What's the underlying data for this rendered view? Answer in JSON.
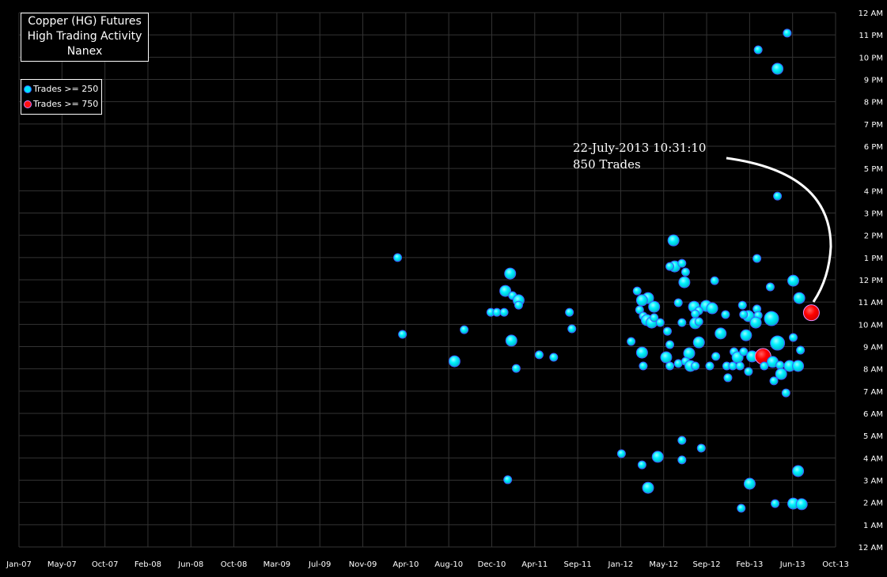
{
  "chart_data": {
    "type": "scatter",
    "title": [
      "Copper (HG) Futures",
      "High Trading Activity",
      "Nanex"
    ],
    "xlim": [
      2007.0,
      2013.75
    ],
    "ylim": [
      0,
      24
    ],
    "grid": true,
    "legend_placement": "top-left",
    "x_tick_labels": [
      "Jan-07",
      "May-07",
      "Oct-07",
      "Feb-08",
      "Jun-08",
      "Oct-08",
      "Mar-09",
      "Jul-09",
      "Nov-09",
      "Apr-10",
      "Aug-10",
      "Dec-10",
      "Apr-11",
      "Sep-11",
      "Jan-12",
      "May-12",
      "Sep-12",
      "Feb-13",
      "Jun-13",
      "Oct-13"
    ],
    "y_tick_labels": [
      "12 AM",
      "1 AM",
      "2 AM",
      "3 AM",
      "4 AM",
      "5 AM",
      "6 AM",
      "7 AM",
      "8 AM",
      "9 AM",
      "10 AM",
      "11 AM",
      "12 PM",
      "1 PM",
      "2 PM",
      "3 PM",
      "4 PM",
      "5 PM",
      "6 PM",
      "7 PM",
      "8 PM",
      "9 PM",
      "10 PM",
      "11 PM",
      "12 AM"
    ],
    "legend": [
      {
        "label": "Trades >= 250",
        "color": "#00e5ff"
      },
      {
        "label": "Trades >= 750",
        "color": "#ff1010"
      }
    ],
    "annotation": {
      "line1": "22-July-2013 10:31:10",
      "line2": "850 Trades"
    },
    "colors": {
      "low": "#00f0ff",
      "high": "#ff0000",
      "grid": "#333333",
      "background": "#000000"
    },
    "x_units": "year (decimal)",
    "y_units": "hour of day",
    "points": [
      [
        2010.13,
        13.0,
        300
      ],
      [
        2010.17,
        9.55,
        300
      ],
      [
        2010.6,
        8.34,
        450
      ],
      [
        2010.68,
        9.76,
        300
      ],
      [
        2010.9,
        10.54,
        300
      ],
      [
        2010.95,
        10.54,
        300
      ],
      [
        2011.01,
        10.54,
        300
      ],
      [
        2011.06,
        12.28,
        450
      ],
      [
        2011.02,
        11.5,
        450
      ],
      [
        2011.08,
        11.29,
        300
      ],
      [
        2011.13,
        11.08,
        450
      ],
      [
        2011.13,
        10.86,
        300
      ],
      [
        2011.07,
        9.27,
        450
      ],
      [
        2011.11,
        8.02,
        300
      ],
      [
        2011.04,
        3.02,
        300
      ],
      [
        2011.3,
        8.63,
        300
      ],
      [
        2011.42,
        8.52,
        300
      ],
      [
        2011.55,
        10.54,
        300
      ],
      [
        2011.57,
        9.8,
        300
      ],
      [
        2012.41,
        13.77,
        450
      ],
      [
        2013.1,
        12.96,
        300
      ],
      [
        2012.42,
        12.6,
        450
      ],
      [
        2012.38,
        12.6,
        300
      ],
      [
        2012.48,
        12.74,
        300
      ],
      [
        2012.51,
        12.35,
        300
      ],
      [
        2012.5,
        11.89,
        450
      ],
      [
        2012.75,
        11.96,
        300
      ],
      [
        2013.4,
        11.96,
        450
      ],
      [
        2013.21,
        11.68,
        300
      ],
      [
        2012.11,
        11.5,
        300
      ],
      [
        2012.2,
        11.18,
        450
      ],
      [
        2012.15,
        11.08,
        450
      ],
      [
        2013.45,
        11.18,
        450
      ],
      [
        2012.25,
        10.79,
        450
      ],
      [
        2012.45,
        10.97,
        300
      ],
      [
        2012.58,
        10.79,
        450
      ],
      [
        2012.68,
        10.83,
        450
      ],
      [
        2012.73,
        10.72,
        450
      ],
      [
        2012.62,
        10.61,
        300
      ],
      [
        2012.59,
        10.47,
        300
      ],
      [
        2012.98,
        10.86,
        300
      ],
      [
        2013.1,
        10.69,
        300
      ],
      [
        2013.11,
        10.4,
        300
      ],
      [
        2013.03,
        10.37,
        450
      ],
      [
        2012.99,
        10.44,
        300
      ],
      [
        2013.09,
        10.08,
        450
      ],
      [
        2013.22,
        10.26,
        650
      ],
      [
        2012.84,
        10.44,
        300
      ],
      [
        2012.13,
        10.65,
        300
      ],
      [
        2012.16,
        10.37,
        300
      ],
      [
        2012.19,
        10.19,
        450
      ],
      [
        2012.23,
        10.08,
        450
      ],
      [
        2012.25,
        10.3,
        300
      ],
      [
        2012.3,
        10.08,
        300
      ],
      [
        2012.48,
        10.08,
        300
      ],
      [
        2012.59,
        10.05,
        450
      ],
      [
        2012.62,
        10.12,
        300
      ],
      [
        2012.36,
        9.69,
        300
      ],
      [
        2012.8,
        9.59,
        450
      ],
      [
        2013.01,
        9.51,
        450
      ],
      [
        2013.4,
        9.41,
        300
      ],
      [
        2012.06,
        9.23,
        300
      ],
      [
        2012.38,
        9.09,
        300
      ],
      [
        2012.62,
        9.19,
        450
      ],
      [
        2013.27,
        9.16,
        650
      ],
      [
        2013.46,
        8.84,
        300
      ],
      [
        2012.15,
        8.73,
        450
      ],
      [
        2012.35,
        8.52,
        450
      ],
      [
        2012.54,
        8.7,
        450
      ],
      [
        2012.76,
        8.56,
        300
      ],
      [
        2012.91,
        8.77,
        300
      ],
      [
        2012.94,
        8.52,
        450
      ],
      [
        2012.99,
        8.77,
        300
      ],
      [
        2013.06,
        8.56,
        450
      ],
      [
        2013.15,
        8.56,
        800
      ],
      [
        2013.23,
        8.31,
        450
      ],
      [
        2013.29,
        8.17,
        300
      ],
      [
        2013.37,
        8.13,
        450
      ],
      [
        2013.44,
        8.13,
        450
      ],
      [
        2012.16,
        8.13,
        300
      ],
      [
        2012.38,
        8.13,
        300
      ],
      [
        2012.45,
        8.24,
        300
      ],
      [
        2012.51,
        8.34,
        300
      ],
      [
        2012.55,
        8.13,
        450
      ],
      [
        2012.59,
        8.13,
        300
      ],
      [
        2012.71,
        8.13,
        300
      ],
      [
        2012.85,
        8.13,
        300
      ],
      [
        2012.9,
        8.13,
        300
      ],
      [
        2012.96,
        8.13,
        300
      ],
      [
        2013.16,
        8.13,
        300
      ],
      [
        2013.03,
        7.88,
        300
      ],
      [
        2013.3,
        7.77,
        450
      ],
      [
        2013.24,
        7.46,
        300
      ],
      [
        2012.86,
        7.6,
        300
      ],
      [
        2013.34,
        6.92,
        300
      ],
      [
        2013.55,
        10.52,
        850
      ],
      [
        2012.48,
        4.79,
        300
      ],
      [
        2012.64,
        4.44,
        300
      ],
      [
        2011.98,
        4.19,
        300
      ],
      [
        2012.28,
        4.05,
        450
      ],
      [
        2012.48,
        3.91,
        300
      ],
      [
        2012.15,
        3.69,
        300
      ],
      [
        2012.2,
        2.66,
        450
      ],
      [
        2013.44,
        3.41,
        450
      ],
      [
        2013.04,
        2.84,
        450
      ],
      [
        2012.97,
        1.74,
        300
      ],
      [
        2013.25,
        1.95,
        300
      ],
      [
        2013.4,
        1.95,
        450
      ],
      [
        2013.47,
        1.92,
        450
      ],
      [
        2013.35,
        23.08,
        300
      ],
      [
        2013.11,
        22.33,
        300
      ],
      [
        2013.27,
        21.48,
        450
      ],
      [
        2013.27,
        15.76,
        300
      ]
    ]
  }
}
